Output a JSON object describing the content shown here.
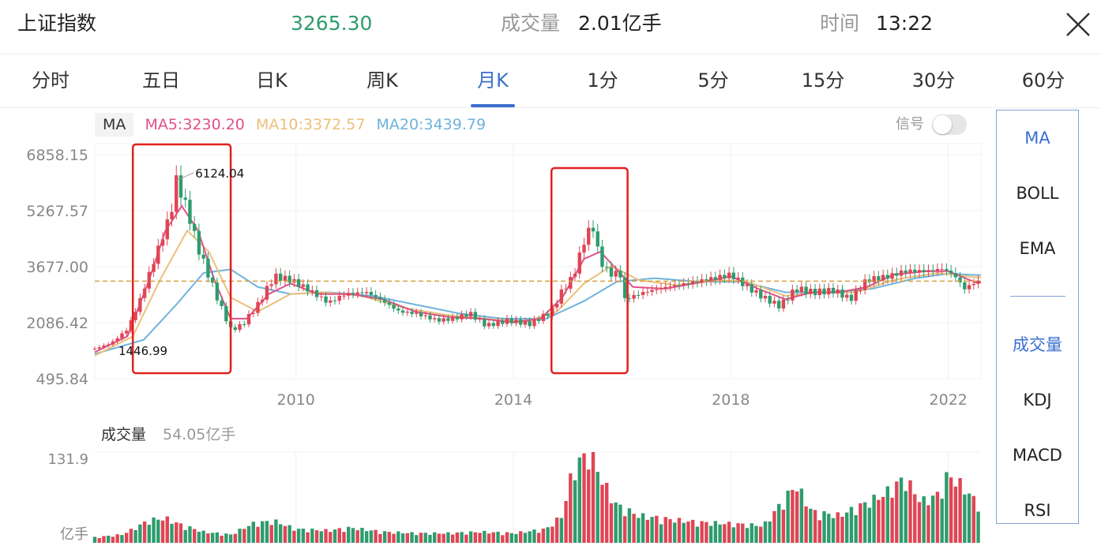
{
  "header": {
    "index_name": "上证指数",
    "price": "3265.30",
    "volume_label": "成交量",
    "volume_value": "2.01亿手",
    "time_label": "时间",
    "time_value": "13:22"
  },
  "tabs": [
    {
      "label": "分时"
    },
    {
      "label": "五日"
    },
    {
      "label": "日K"
    },
    {
      "label": "周K"
    },
    {
      "label": "月K",
      "active": true
    },
    {
      "label": "1分"
    },
    {
      "label": "5分"
    },
    {
      "label": "15分"
    },
    {
      "label": "30分"
    },
    {
      "label": "60分"
    }
  ],
  "legend": {
    "ma_tag": "MA",
    "ma5": "MA5:3230.20",
    "ma10": "MA10:3372.57",
    "ma20": "MA20:3439.79",
    "signal_label": "信号"
  },
  "side_panel": {
    "main_indicators": [
      "MA",
      "BOLL",
      "EMA"
    ],
    "sub_indicators": [
      "成交量",
      "KDJ",
      "MACD",
      "RSI"
    ]
  },
  "colors": {
    "up": "#e04554",
    "down": "#2e9c6e",
    "ma5": "#e0508a",
    "ma10": "#ecc07a",
    "ma20": "#6eb3dc",
    "accent": "#3b6fcf",
    "highlight_box": "#e0201e",
    "last_price_line": "#d9a040"
  },
  "chart_data": {
    "type": "candlestick",
    "y_ticks": [
      "6858.15",
      "5267.57",
      "3677.00",
      "2086.42",
      "495.84"
    ],
    "ylim": [
      495.84,
      6858.15
    ],
    "x_ticks": [
      "2010",
      "2014",
      "2018",
      "2022"
    ],
    "x_tick_years": [
      2010,
      2014,
      2018,
      2022
    ],
    "start_year": 2006.3,
    "end_year": 2022.6,
    "annotations": {
      "high": "6124.04",
      "low": "1446.99"
    },
    "highlight_ranges": [
      [
        2007.0,
        2008.8
      ],
      [
        2014.7,
        2016.1
      ]
    ],
    "last_price": 3265.3,
    "close_series": [
      [
        2006.3,
        1350
      ],
      [
        2006.6,
        1500
      ],
      [
        2006.9,
        1900
      ],
      [
        2007.1,
        2600
      ],
      [
        2007.4,
        3900
      ],
      [
        2007.7,
        5200
      ],
      [
        2007.8,
        6124
      ],
      [
        2008.0,
        5300
      ],
      [
        2008.2,
        4200
      ],
      [
        2008.4,
        3400
      ],
      [
        2008.6,
        2600
      ],
      [
        2008.8,
        1900
      ],
      [
        2009.0,
        2000
      ],
      [
        2009.3,
        2600
      ],
      [
        2009.6,
        3400
      ],
      [
        2009.9,
        3300
      ],
      [
        2010.2,
        3050
      ],
      [
        2010.6,
        2650
      ],
      [
        2010.9,
        2900
      ],
      [
        2011.3,
        2950
      ],
      [
        2011.6,
        2700
      ],
      [
        2011.9,
        2400
      ],
      [
        2012.2,
        2350
      ],
      [
        2012.6,
        2150
      ],
      [
        2012.9,
        2200
      ],
      [
        2013.2,
        2350
      ],
      [
        2013.5,
        2000
      ],
      [
        2013.9,
        2150
      ],
      [
        2014.3,
        2050
      ],
      [
        2014.7,
        2400
      ],
      [
        2014.9,
        3000
      ],
      [
        2015.1,
        3400
      ],
      [
        2015.3,
        4400
      ],
      [
        2015.45,
        4900
      ],
      [
        2015.6,
        3800
      ],
      [
        2015.8,
        3450
      ],
      [
        2015.95,
        3550
      ],
      [
        2016.05,
        2750
      ],
      [
        2016.4,
        2950
      ],
      [
        2016.8,
        3100
      ],
      [
        2017.2,
        3200
      ],
      [
        2017.7,
        3350
      ],
      [
        2018.0,
        3450
      ],
      [
        2018.3,
        3100
      ],
      [
        2018.6,
        2800
      ],
      [
        2018.9,
        2550
      ],
      [
        2019.2,
        3050
      ],
      [
        2019.5,
        2950
      ],
      [
        2019.9,
        3000
      ],
      [
        2020.2,
        2750
      ],
      [
        2020.5,
        3300
      ],
      [
        2020.9,
        3400
      ],
      [
        2021.2,
        3550
      ],
      [
        2021.6,
        3550
      ],
      [
        2021.9,
        3620
      ],
      [
        2022.1,
        3450
      ],
      [
        2022.3,
        3050
      ],
      [
        2022.5,
        3250
      ]
    ],
    "ma5_series": [
      [
        2006.3,
        1250
      ],
      [
        2006.9,
        1700
      ],
      [
        2007.3,
        3300
      ],
      [
        2007.6,
        4700
      ],
      [
        2007.9,
        5400
      ],
      [
        2008.2,
        4700
      ],
      [
        2008.5,
        3300
      ],
      [
        2008.8,
        2200
      ],
      [
        2009.1,
        2200
      ],
      [
        2009.5,
        2900
      ],
      [
        2009.9,
        3200
      ],
      [
        2010.4,
        2900
      ],
      [
        2011.0,
        2900
      ],
      [
        2011.6,
        2750
      ],
      [
        2012.2,
        2400
      ],
      [
        2012.8,
        2250
      ],
      [
        2013.4,
        2200
      ],
      [
        2014.0,
        2100
      ],
      [
        2014.5,
        2200
      ],
      [
        2014.9,
        2800
      ],
      [
        2015.3,
        3900
      ],
      [
        2015.6,
        4100
      ],
      [
        2015.9,
        3600
      ],
      [
        2016.2,
        3100
      ],
      [
        2016.8,
        3050
      ],
      [
        2017.5,
        3250
      ],
      [
        2018.0,
        3400
      ],
      [
        2018.5,
        3050
      ],
      [
        2019.0,
        2750
      ],
      [
        2019.5,
        2950
      ],
      [
        2020.0,
        2950
      ],
      [
        2020.5,
        3100
      ],
      [
        2021.0,
        3450
      ],
      [
        2021.6,
        3550
      ],
      [
        2022.0,
        3550
      ],
      [
        2022.5,
        3230
      ]
    ],
    "ma10_series": [
      [
        2006.3,
        1150
      ],
      [
        2007.0,
        1700
      ],
      [
        2007.5,
        3300
      ],
      [
        2008.0,
        4700
      ],
      [
        2008.4,
        4100
      ],
      [
        2008.8,
        2800
      ],
      [
        2009.3,
        2400
      ],
      [
        2009.9,
        2900
      ],
      [
        2010.5,
        2950
      ],
      [
        2011.2,
        2850
      ],
      [
        2012.0,
        2500
      ],
      [
        2012.8,
        2300
      ],
      [
        2013.5,
        2200
      ],
      [
        2014.2,
        2100
      ],
      [
        2014.8,
        2400
      ],
      [
        2015.3,
        3200
      ],
      [
        2015.8,
        3700
      ],
      [
        2016.3,
        3300
      ],
      [
        2017.0,
        3150
      ],
      [
        2017.8,
        3300
      ],
      [
        2018.3,
        3250
      ],
      [
        2019.0,
        2850
      ],
      [
        2019.6,
        2950
      ],
      [
        2020.3,
        2950
      ],
      [
        2021.0,
        3300
      ],
      [
        2021.8,
        3500
      ],
      [
        2022.5,
        3372
      ]
    ],
    "ma20_series": [
      [
        2006.3,
        1200
      ],
      [
        2007.2,
        1600
      ],
      [
        2007.8,
        2600
      ],
      [
        2008.3,
        3500
      ],
      [
        2008.8,
        3600
      ],
      [
        2009.3,
        3100
      ],
      [
        2009.9,
        2900
      ],
      [
        2010.6,
        2950
      ],
      [
        2011.4,
        2850
      ],
      [
        2012.2,
        2600
      ],
      [
        2013.0,
        2350
      ],
      [
        2013.8,
        2200
      ],
      [
        2014.6,
        2200
      ],
      [
        2015.3,
        2700
      ],
      [
        2015.9,
        3250
      ],
      [
        2016.6,
        3350
      ],
      [
        2017.4,
        3250
      ],
      [
        2018.2,
        3250
      ],
      [
        2019.0,
        2950
      ],
      [
        2019.8,
        2950
      ],
      [
        2020.6,
        3050
      ],
      [
        2021.4,
        3350
      ],
      [
        2022.0,
        3480
      ],
      [
        2022.5,
        3440
      ]
    ],
    "volume": {
      "label": "成交量",
      "current": "54.05亿手",
      "max_tick": "131.9",
      "unit": "亿手",
      "ymax": 131.9,
      "monthly": [
        [
          2006.3,
          8,
          1
        ],
        [
          2006.8,
          12,
          1
        ],
        [
          2007.0,
          20,
          1
        ],
        [
          2007.3,
          33,
          1
        ],
        [
          2007.6,
          36,
          0
        ],
        [
          2007.9,
          26,
          0
        ],
        [
          2008.3,
          16,
          0
        ],
        [
          2008.8,
          12,
          0
        ],
        [
          2009.2,
          28,
          1
        ],
        [
          2009.6,
          32,
          1
        ],
        [
          2010.0,
          20,
          0
        ],
        [
          2010.6,
          18,
          1
        ],
        [
          2011.0,
          22,
          1
        ],
        [
          2011.6,
          16,
          0
        ],
        [
          2012.2,
          14,
          0
        ],
        [
          2012.8,
          14,
          1
        ],
        [
          2013.4,
          16,
          0
        ],
        [
          2014.0,
          14,
          0
        ],
        [
          2014.6,
          20,
          1
        ],
        [
          2014.9,
          40,
          1
        ],
        [
          2015.1,
          110,
          1
        ],
        [
          2015.3,
          125,
          1
        ],
        [
          2015.45,
          135,
          0
        ],
        [
          2015.6,
          95,
          0
        ],
        [
          2015.9,
          55,
          1
        ],
        [
          2016.3,
          40,
          0
        ],
        [
          2016.8,
          35,
          1
        ],
        [
          2017.4,
          30,
          0
        ],
        [
          2018.0,
          28,
          1
        ],
        [
          2018.6,
          25,
          0
        ],
        [
          2019.2,
          85,
          1
        ],
        [
          2019.5,
          45,
          0
        ],
        [
          2020.0,
          40,
          1
        ],
        [
          2020.4,
          55,
          0
        ],
        [
          2020.8,
          70,
          1
        ],
        [
          2021.2,
          95,
          1
        ],
        [
          2021.5,
          60,
          0
        ],
        [
          2021.8,
          70,
          1
        ],
        [
          2022.0,
          100,
          1
        ],
        [
          2022.3,
          80,
          0
        ],
        [
          2022.5,
          60,
          0
        ]
      ]
    }
  }
}
